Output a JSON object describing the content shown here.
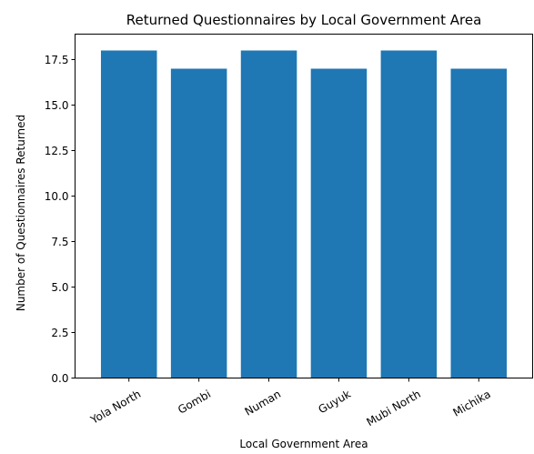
{
  "chart_data": {
    "type": "bar",
    "title": "Returned Questionnaires by Local Government Area",
    "xlabel": "Local Government Area",
    "ylabel": "Number of Questionnaires Returned",
    "categories": [
      "Yola North",
      "Gombi",
      "Numan",
      "Guyuk",
      "Mubi North",
      "Michika"
    ],
    "values": [
      18,
      17,
      18,
      17,
      18,
      17
    ],
    "ylim": [
      0,
      18.9
    ],
    "yticks": [
      0.0,
      2.5,
      5.0,
      7.5,
      10.0,
      12.5,
      15.0,
      17.5
    ],
    "ytick_labels": [
      "0.0",
      "2.5",
      "5.0",
      "7.5",
      "10.0",
      "12.5",
      "15.0",
      "17.5"
    ],
    "bar_color": "#1f77b4",
    "grid": false,
    "legend": "none"
  }
}
